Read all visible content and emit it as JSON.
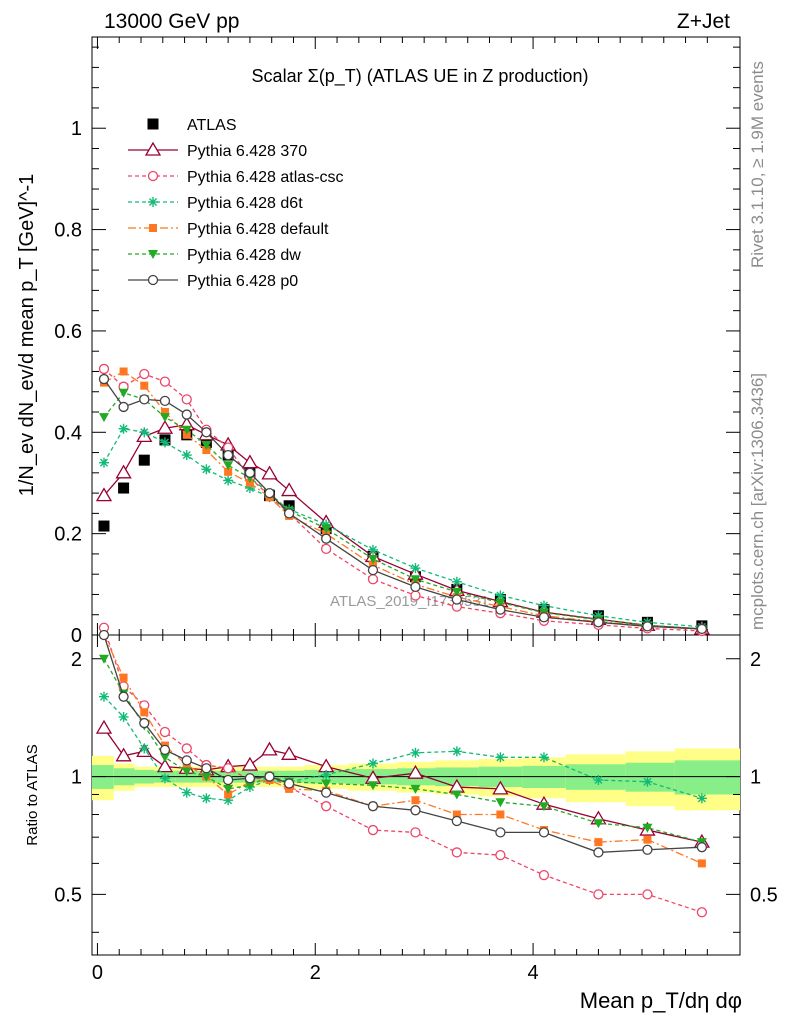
{
  "header": {
    "left": "13000 GeV pp",
    "right": "Z+Jet"
  },
  "side": {
    "rivet": "Rivet 3.1.10, ≥ 1.9M events",
    "mcplots": "mcplots.cern.ch [arXiv:1306.3436]"
  },
  "chart_data": {
    "type": "line",
    "title": "Scalar Σ(p_T) (ATLAS UE in Z production)",
    "watermark": "ATLAS_2019_I1736531",
    "xlabel": "Mean p_T/dη dφ",
    "ylabel": "1/N_ev dN_ev/d mean p_T [GeV]^-1",
    "ratio_ylabel": "Ratio to ATLAS",
    "xlim": [
      -0.05,
      5.9
    ],
    "ylim": [
      0,
      1.18
    ],
    "ratio_ylim": [
      0.35,
      2.3
    ],
    "x_ticks": [
      "0",
      "2",
      "4"
    ],
    "y_ticks": [
      "0",
      "0.2",
      "0.4",
      "0.6",
      "0.8",
      "1"
    ],
    "ratio_y_ticks": [
      "0.5",
      "1",
      "2"
    ],
    "x": [
      0.06,
      0.24,
      0.43,
      0.62,
      0.82,
      1.0,
      1.2,
      1.4,
      1.58,
      1.76,
      2.1,
      2.53,
      2.92,
      3.3,
      3.7,
      4.1,
      4.6,
      5.05,
      5.55
    ],
    "series": [
      {
        "name": "ATLAS",
        "color": "#000000",
        "marker": "square",
        "dash": "none",
        "values": [
          0.215,
          0.29,
          0.345,
          0.385,
          0.395,
          0.38,
          0.355,
          0.32,
          0.275,
          0.255,
          0.21,
          0.155,
          0.115,
          0.09,
          0.07,
          0.05,
          0.038,
          0.025,
          0.018
        ],
        "ratio": [
          1,
          1,
          1,
          1,
          1,
          1,
          1,
          1,
          1,
          1,
          1,
          1,
          1,
          1,
          1,
          1,
          1,
          1,
          1
        ]
      },
      {
        "name": "Pythia 6.428 370",
        "color": "#990033",
        "marker": "triangle-open",
        "dash": "none",
        "values": [
          0.275,
          0.32,
          0.392,
          0.408,
          0.415,
          0.395,
          0.375,
          0.34,
          0.318,
          0.285,
          0.222,
          0.155,
          0.12,
          0.088,
          0.066,
          0.045,
          0.031,
          0.019,
          0.012
        ],
        "ratio": [
          1.33,
          1.13,
          1.16,
          1.06,
          1.05,
          1.04,
          1.06,
          1.07,
          1.17,
          1.14,
          1.06,
          0.99,
          1.02,
          0.94,
          0.93,
          0.85,
          0.78,
          0.73,
          0.68
        ]
      },
      {
        "name": "Pythia 6.428 atlas-csc",
        "color": "#ee4466",
        "marker": "circle-open",
        "dash": "4,3",
        "values": [
          0.525,
          0.49,
          0.515,
          0.5,
          0.465,
          0.405,
          0.37,
          0.31,
          0.275,
          0.24,
          0.17,
          0.11,
          0.078,
          0.056,
          0.043,
          0.028,
          0.02,
          0.013,
          0.008
        ],
        "ratio": [
          2.4,
          1.7,
          1.52,
          1.3,
          1.18,
          1.07,
          1.05,
          0.98,
          1.0,
          0.94,
          0.84,
          0.73,
          0.72,
          0.64,
          0.63,
          0.56,
          0.5,
          0.5,
          0.45
        ]
      },
      {
        "name": "Pythia 6.428 d6t",
        "color": "#11bb77",
        "marker": "asterisk",
        "dash": "4,3",
        "values": [
          0.34,
          0.407,
          0.4,
          0.38,
          0.355,
          0.327,
          0.305,
          0.29,
          0.272,
          0.248,
          0.218,
          0.168,
          0.132,
          0.105,
          0.078,
          0.058,
          0.038,
          0.025,
          0.016
        ],
        "ratio": [
          1.6,
          1.42,
          1.18,
          0.99,
          0.91,
          0.88,
          0.87,
          0.94,
          0.98,
          0.97,
          1.01,
          1.08,
          1.15,
          1.16,
          1.12,
          1.12,
          0.98,
          0.97,
          0.88
        ]
      },
      {
        "name": "Pythia 6.428 default",
        "color": "#ff7722",
        "marker": "square-filled",
        "dash": "8,3,2,3",
        "values": [
          0.498,
          0.52,
          0.492,
          0.44,
          0.395,
          0.365,
          0.322,
          0.3,
          0.272,
          0.235,
          0.2,
          0.138,
          0.1,
          0.075,
          0.056,
          0.038,
          0.026,
          0.018,
          0.011
        ],
        "ratio": [
          2.3,
          1.79,
          1.46,
          1.2,
          1.07,
          1.0,
          0.9,
          0.97,
          0.98,
          0.93,
          0.92,
          0.84,
          0.87,
          0.8,
          0.8,
          0.73,
          0.68,
          0.69,
          0.6
        ]
      },
      {
        "name": "Pythia 6.428 dw",
        "color": "#22aa22",
        "marker": "triangle-down",
        "dash": "4,3",
        "values": [
          0.43,
          0.478,
          0.465,
          0.43,
          0.405,
          0.375,
          0.335,
          0.31,
          0.28,
          0.245,
          0.21,
          0.15,
          0.11,
          0.085,
          0.064,
          0.044,
          0.03,
          0.019,
          0.012
        ],
        "ratio": [
          2.0,
          1.63,
          1.35,
          1.12,
          1.03,
          1.0,
          0.93,
          0.95,
          1.0,
          0.97,
          0.96,
          0.95,
          0.93,
          0.9,
          0.86,
          0.84,
          0.76,
          0.74,
          0.68
        ]
      },
      {
        "name": "Pythia 6.428 p0",
        "color": "#444444",
        "marker": "circle-open",
        "dash": "none",
        "values": [
          0.505,
          0.45,
          0.465,
          0.462,
          0.435,
          0.4,
          0.355,
          0.32,
          0.28,
          0.24,
          0.19,
          0.128,
          0.095,
          0.07,
          0.05,
          0.035,
          0.025,
          0.017,
          0.012
        ],
        "ratio": [
          2.3,
          1.6,
          1.37,
          1.17,
          1.1,
          1.05,
          0.98,
          0.99,
          1.0,
          0.96,
          0.91,
          0.84,
          0.82,
          0.77,
          0.72,
          0.72,
          0.64,
          0.65,
          0.66
        ]
      }
    ]
  }
}
